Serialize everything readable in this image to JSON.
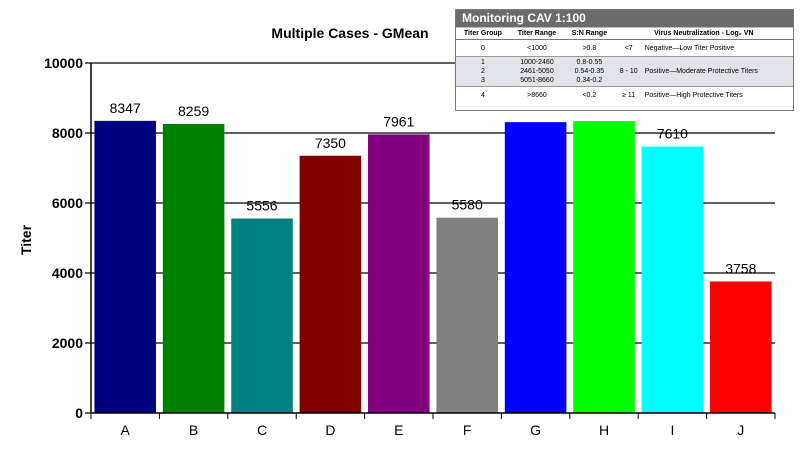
{
  "chart_data": {
    "type": "bar",
    "title": "Multiple Cases - GMean",
    "ylabel": "Titer",
    "xlabel": "",
    "ylim": [
      0,
      10000
    ],
    "yticks": [
      0,
      2000,
      4000,
      6000,
      8000,
      10000
    ],
    "grid": true,
    "categories": [
      "A",
      "B",
      "C",
      "D",
      "E",
      "F",
      "G",
      "H",
      "I",
      "J"
    ],
    "values": [
      8347,
      8259,
      5556,
      7350,
      7961,
      5580,
      8310,
      8340,
      7610,
      3758
    ],
    "data_labels": [
      "8347",
      "8259",
      "5556",
      "7350",
      "7961",
      "5580",
      "",
      "",
      "7610",
      "3758"
    ],
    "colors": [
      "#000080",
      "#008000",
      "#008080",
      "#800000",
      "#800080",
      "#808080",
      "#0000ff",
      "#00ff00",
      "#00ffff",
      "#ff0000"
    ]
  },
  "reference_table": {
    "title": "Monitoring CAV 1:100",
    "headers": [
      "Titer Group",
      "Titer Range",
      "S:N Range",
      "Virus Neutralization - Log₂ VN"
    ],
    "rows": [
      {
        "group": "0",
        "range": "<1000",
        "sn": ">0.8",
        "vn_value": "<7",
        "vn_desc": "Negative—Low Titer Positive"
      },
      {
        "group": "1\n2\n3",
        "range": "1000-2460\n2461-5050\n5051-8660",
        "sn": "0.8-0.55\n0.54-0.35\n0.34-0.2",
        "vn_value": "8 - 10",
        "vn_desc": "Positive—Moderate Protective Titers"
      },
      {
        "group": "4",
        "range": ">8660",
        "sn": "<0.2",
        "vn_value": "≥ 11",
        "vn_desc": "Positive—High Protective Titers"
      }
    ]
  }
}
